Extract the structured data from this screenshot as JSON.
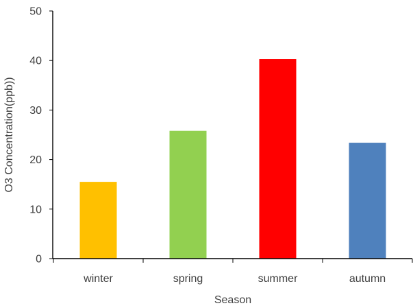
{
  "chart_data": {
    "type": "bar",
    "title": "",
    "xlabel": "Season",
    "ylabel": "O3 Concentration(ppb))",
    "categories": [
      "winter",
      "spring",
      "summer",
      "autumn"
    ],
    "values": [
      15.5,
      25.8,
      40.3,
      23.4
    ],
    "colors": [
      "#FFC000",
      "#92D050",
      "#FF0000",
      "#4F81BD"
    ],
    "ylim": [
      0,
      50
    ],
    "yticks": [
      0,
      10,
      20,
      30,
      40,
      50
    ],
    "grid": false,
    "legend": "none"
  }
}
